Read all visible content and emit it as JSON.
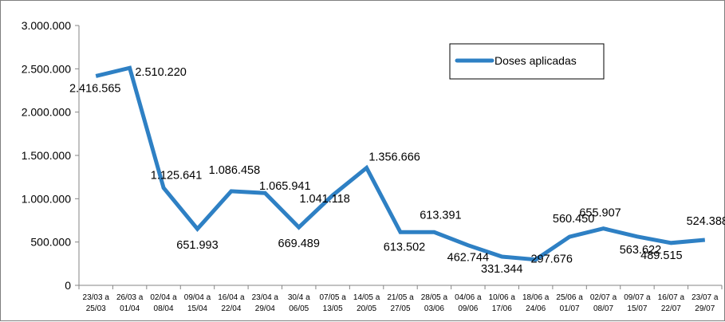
{
  "chart_data": {
    "type": "line",
    "title": "",
    "xlabel": "",
    "ylabel": "",
    "ylim": [
      0,
      3000000
    ],
    "yticks": [
      "0",
      "500.000",
      "1.000.000",
      "1.500.000",
      "2.000.000",
      "2.500.000",
      "3.000.000"
    ],
    "grid": false,
    "legend_position": "top-right",
    "categories": [
      [
        "23/03 a",
        "25/03"
      ],
      [
        "26/03 a",
        "01/04"
      ],
      [
        "02/04 a",
        "08/04"
      ],
      [
        "09/04 a",
        "15/04"
      ],
      [
        "16/04 a",
        "22/04"
      ],
      [
        "23/04 a",
        "29/04"
      ],
      [
        "30/4 a",
        "06/05"
      ],
      [
        "07/05 a",
        "13/05"
      ],
      [
        "14/05 a",
        "20/05"
      ],
      [
        "21/05 a",
        "27/05"
      ],
      [
        "28/05 a",
        "03/06"
      ],
      [
        "04/06 a",
        "09/06"
      ],
      [
        "10/06 a",
        "17/06"
      ],
      [
        "18/06 a",
        "24/06"
      ],
      [
        "25/06 a",
        "01/07"
      ],
      [
        "02/07 a",
        "08/07"
      ],
      [
        "09/07 a",
        "15/07"
      ],
      [
        "16/07 a",
        "22/07"
      ],
      [
        "23/07 a",
        "29/07"
      ]
    ],
    "series": [
      {
        "name": "Doses aplicadas",
        "color": "#2e80c4",
        "values": [
          2416565,
          2510220,
          1125641,
          651993,
          1086458,
          1065941,
          669489,
          1041118,
          1356666,
          613502,
          613391,
          462744,
          331344,
          297676,
          560450,
          655907,
          563622,
          489515,
          524388
        ],
        "labels": [
          "2.416.565",
          "2.510.220",
          "1.125.641",
          "651.993",
          "1.086.458",
          "1.065.941",
          "669.489",
          "1.041.118",
          "1.356.666",
          "613.502",
          "613.391",
          "462.744",
          "331.344",
          "297.676",
          "560.450",
          "655.907",
          "563.622",
          "489.515",
          "524.388"
        ]
      }
    ]
  }
}
